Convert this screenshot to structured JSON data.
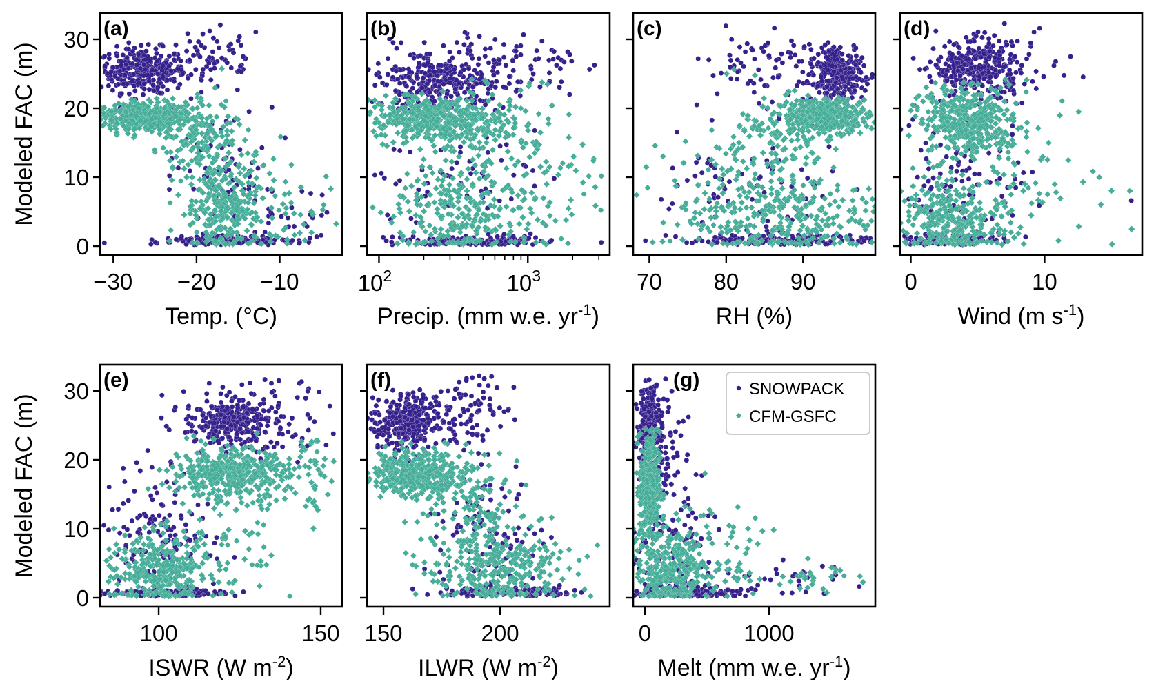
{
  "chart_data": {
    "type": "scatter",
    "shared_ylabel": "Modeled FAC (m)",
    "ylim": [
      -1.3,
      33.8
    ],
    "yticks": [
      0,
      10,
      20,
      30
    ],
    "legend": {
      "placement": "top-right of panel (g)",
      "entries": [
        {
          "name": "SNOWPACK",
          "marker": "circle",
          "color": "#35208c"
        },
        {
          "name": "CFM-GSFC",
          "marker": "diamond",
          "color": "#45ad98"
        }
      ]
    },
    "panels": [
      {
        "tag": "(a)",
        "xlabel": "Temp. (°C)",
        "xlabel_sup": "",
        "xlabel_tail": "",
        "xscale": "linear",
        "xlim": [
          -31.6,
          -2.5
        ],
        "xticks": [
          -30,
          -20,
          -10
        ],
        "xtick_labels": [
          "−30",
          "−20",
          "−10"
        ],
        "series": [
          {
            "name": "SNOWPACK",
            "clusters": [
              {
                "cx": -26.5,
                "cy": 25.5,
                "sx": 2.6,
                "sy": 1.6,
                "n": 320
              },
              {
                "cx": -18,
                "cy": 27,
                "sx": 3.2,
                "sy": 2.6,
                "n": 70
              },
              {
                "cx": -17,
                "cy": 0.8,
                "sx": 3.5,
                "sy": 0.4,
                "n": 140
              },
              {
                "cx": -17,
                "cy": 10,
                "sx": 3.0,
                "sy": 5.0,
                "n": 70
              },
              {
                "cx": -9,
                "cy": 3.5,
                "sx": 3.5,
                "sy": 2.6,
                "n": 35
              }
            ]
          },
          {
            "name": "CFM-GSFC",
            "clusters": [
              {
                "cx": -26.5,
                "cy": 18.8,
                "sx": 2.8,
                "sy": 1.1,
                "n": 380
              },
              {
                "cx": -20,
                "cy": 16,
                "sx": 2.5,
                "sy": 3.0,
                "n": 160
              },
              {
                "cx": -17,
                "cy": 6,
                "sx": 2.5,
                "sy": 4.0,
                "n": 260
              },
              {
                "cx": -10,
                "cy": 5,
                "sx": 3.8,
                "sy": 4.0,
                "n": 55
              }
            ]
          }
        ]
      },
      {
        "tag": "(b)",
        "xlabel": "Precip. (mm w.e. yr",
        "xlabel_sup": "-1",
        "xlabel_tail": ")",
        "xscale": "log",
        "xlim": [
          83,
          3550
        ],
        "xticks": [
          100,
          1000
        ],
        "xtick_labels": [
          "10²",
          "10³"
        ],
        "minor_ticks": [
          200,
          300,
          400,
          500,
          600,
          700,
          800,
          900,
          2000,
          3000
        ],
        "series": [
          {
            "name": "SNOWPACK",
            "clusters": [
              {
                "cx": 250,
                "cy": 24,
                "sx": 0.2,
                "sy": 2.2,
                "n": 320
              },
              {
                "cx": 1000,
                "cy": 26.5,
                "sx": 0.25,
                "sy": 3.0,
                "n": 70
              },
              {
                "cx": 400,
                "cy": 0.8,
                "sx": 0.3,
                "sy": 0.4,
                "n": 140
              },
              {
                "cx": 300,
                "cy": 10,
                "sx": 0.3,
                "sy": 4.5,
                "n": 70
              }
            ]
          },
          {
            "name": "CFM-GSFC",
            "clusters": [
              {
                "cx": 220,
                "cy": 18.5,
                "sx": 0.2,
                "sy": 1.4,
                "n": 380
              },
              {
                "cx": 500,
                "cy": 17,
                "sx": 0.25,
                "sy": 3.0,
                "n": 160
              },
              {
                "cx": 350,
                "cy": 5,
                "sx": 0.25,
                "sy": 3.5,
                "n": 260
              },
              {
                "cx": 1500,
                "cy": 10,
                "sx": 0.25,
                "sy": 6,
                "n": 55
              }
            ]
          }
        ]
      },
      {
        "tag": "(c)",
        "xlabel": "RH (%)",
        "xlabel_sup": "",
        "xlabel_tail": "",
        "xscale": "linear",
        "xlim": [
          67.9,
          99.4
        ],
        "xticks": [
          70,
          80,
          90
        ],
        "xtick_labels": [
          "70",
          "80",
          "90"
        ],
        "series": [
          {
            "name": "SNOWPACK",
            "clusters": [
              {
                "cx": 94.5,
                "cy": 25,
                "sx": 1.6,
                "sy": 1.5,
                "n": 320
              },
              {
                "cx": 85,
                "cy": 26,
                "sx": 4,
                "sy": 3.0,
                "n": 80
              },
              {
                "cx": 87,
                "cy": 0.8,
                "sx": 6,
                "sy": 0.4,
                "n": 140
              },
              {
                "cx": 82,
                "cy": 8,
                "sx": 7,
                "sy": 5.0,
                "n": 90
              }
            ]
          },
          {
            "name": "CFM-GSFC",
            "clusters": [
              {
                "cx": 93,
                "cy": 19,
                "sx": 2.8,
                "sy": 1.2,
                "n": 380
              },
              {
                "cx": 86,
                "cy": 15,
                "sx": 4,
                "sy": 3.5,
                "n": 160
              },
              {
                "cx": 88,
                "cy": 4,
                "sx": 6,
                "sy": 3.0,
                "n": 260
              },
              {
                "cx": 77,
                "cy": 8,
                "sx": 4,
                "sy": 5,
                "n": 55
              }
            ]
          }
        ]
      },
      {
        "tag": "(d)",
        "xlabel": "Wind (m s",
        "xlabel_sup": "-1",
        "xlabel_tail": ")",
        "xscale": "linear",
        "xlim": [
          -0.8,
          17.3
        ],
        "xticks": [
          0,
          10
        ],
        "xtick_labels": [
          "0",
          "10"
        ],
        "series": [
          {
            "name": "SNOWPACK",
            "clusters": [
              {
                "cx": 5,
                "cy": 25.5,
                "sx": 1.6,
                "sy": 2.0,
                "n": 280
              },
              {
                "cx": 6,
                "cy": 27,
                "sx": 3.0,
                "sy": 3.0,
                "n": 60
              },
              {
                "cx": 3,
                "cy": 0.8,
                "sx": 1.6,
                "sy": 0.4,
                "n": 140
              },
              {
                "cx": 3.5,
                "cy": 9,
                "sx": 2.8,
                "sy": 5.5,
                "n": 110
              },
              {
                "cx": 16.5,
                "cy": 6.6,
                "sx": 0.01,
                "sy": 0.01,
                "n": 1
              }
            ]
          },
          {
            "name": "CFM-GSFC",
            "clusters": [
              {
                "cx": 4.5,
                "cy": 18,
                "sx": 1.8,
                "sy": 2.4,
                "n": 380
              },
              {
                "cx": 3,
                "cy": 4,
                "sx": 2.0,
                "sy": 3.0,
                "n": 300
              },
              {
                "cx": 8,
                "cy": 10,
                "sx": 3.0,
                "sy": 5.5,
                "n": 70
              },
              {
                "cx": 16.5,
                "cy": 2.5,
                "sx": 0.01,
                "sy": 0.01,
                "n": 1
              },
              {
                "cx": 14.1,
                "cy": 10,
                "sx": 0.01,
                "sy": 0.01,
                "n": 1
              }
            ]
          }
        ]
      },
      {
        "tag": "(e)",
        "xlabel": "ISWR (W m",
        "xlabel_sup": "-2",
        "xlabel_tail": ")",
        "xscale": "linear",
        "xlim": [
          81.9,
          156.6
        ],
        "xticks": [
          100,
          150
        ],
        "xtick_labels": [
          "100",
          "150"
        ],
        "series": [
          {
            "name": "SNOWPACK",
            "clusters": [
              {
                "cx": 122,
                "cy": 25.5,
                "sx": 7,
                "sy": 1.6,
                "n": 260
              },
              {
                "cx": 130,
                "cy": 26,
                "sx": 12,
                "sy": 3.0,
                "n": 90
              },
              {
                "cx": 103,
                "cy": 0.7,
                "sx": 9,
                "sy": 0.3,
                "n": 150
              },
              {
                "cx": 100,
                "cy": 10,
                "sx": 8,
                "sy": 5.0,
                "n": 140
              }
            ]
          },
          {
            "name": "CFM-GSFC",
            "clusters": [
              {
                "cx": 122,
                "cy": 18,
                "sx": 9,
                "sy": 1.8,
                "n": 420
              },
              {
                "cx": 100,
                "cy": 4,
                "sx": 8,
                "sy": 2.6,
                "n": 280
              },
              {
                "cx": 118,
                "cy": 9,
                "sx": 12,
                "sy": 5,
                "n": 90
              },
              {
                "cx": 148,
                "cy": 18,
                "sx": 4,
                "sy": 2.5,
                "n": 40
              }
            ]
          }
        ]
      },
      {
        "tag": "(f)",
        "xlabel": "ILWR (W m",
        "xlabel_sup": "-2",
        "xlabel_tail": ")",
        "xscale": "linear",
        "xlim": [
          142.9,
          247.0
        ],
        "xticks": [
          150,
          200
        ],
        "xtick_labels": [
          "150",
          "200"
        ],
        "series": [
          {
            "name": "SNOWPACK",
            "clusters": [
              {
                "cx": 160,
                "cy": 25.5,
                "sx": 7,
                "sy": 2.0,
                "n": 300
              },
              {
                "cx": 185,
                "cy": 27,
                "sx": 9,
                "sy": 2.8,
                "n": 90
              },
              {
                "cx": 205,
                "cy": 0.8,
                "sx": 14,
                "sy": 0.4,
                "n": 140
              },
              {
                "cx": 195,
                "cy": 9,
                "sx": 14,
                "sy": 5.0,
                "n": 100
              }
            ]
          },
          {
            "name": "CFM-GSFC",
            "clusters": [
              {
                "cx": 165,
                "cy": 18,
                "sx": 10,
                "sy": 1.6,
                "n": 400
              },
              {
                "cx": 200,
                "cy": 4,
                "sx": 15,
                "sy": 2.8,
                "n": 280
              },
              {
                "cx": 190,
                "cy": 11,
                "sx": 12,
                "sy": 5,
                "n": 120
              }
            ]
          }
        ]
      },
      {
        "tag": "(g)",
        "xlabel": "Melt (mm w.e. yr",
        "xlabel_sup": "-1",
        "xlabel_tail": ")",
        "xscale": "linear",
        "xlim": [
          -94,
          1856
        ],
        "xticks": [
          0,
          1000
        ],
        "xtick_labels": [
          "0",
          "1000"
        ],
        "series": [
          {
            "name": "SNOWPACK",
            "clusters": [
              {
                "cx": 40,
                "cy": 25,
                "sx": 40,
                "sy": 3.0,
                "n": 200
              },
              {
                "cx": 120,
                "cy": 22,
                "sx": 100,
                "sy": 5,
                "n": 90
              },
              {
                "cx": 300,
                "cy": 0.8,
                "sx": 220,
                "sy": 0.4,
                "n": 160
              },
              {
                "cx": 200,
                "cy": 8,
                "sx": 180,
                "sy": 5,
                "n": 120
              },
              {
                "cx": 1200,
                "cy": 2.5,
                "sx": 350,
                "sy": 1.5,
                "n": 30
              }
            ]
          },
          {
            "name": "CFM-GSFC",
            "clusters": [
              {
                "cx": 40,
                "cy": 16,
                "sx": 40,
                "sy": 4.0,
                "n": 340
              },
              {
                "cx": 200,
                "cy": 4,
                "sx": 160,
                "sy": 3.0,
                "n": 300
              },
              {
                "cx": 650,
                "cy": 8,
                "sx": 220,
                "sy": 4,
                "n": 40
              },
              {
                "cx": 1300,
                "cy": 3,
                "sx": 300,
                "sy": 1.3,
                "n": 35
              }
            ]
          }
        ]
      }
    ]
  }
}
